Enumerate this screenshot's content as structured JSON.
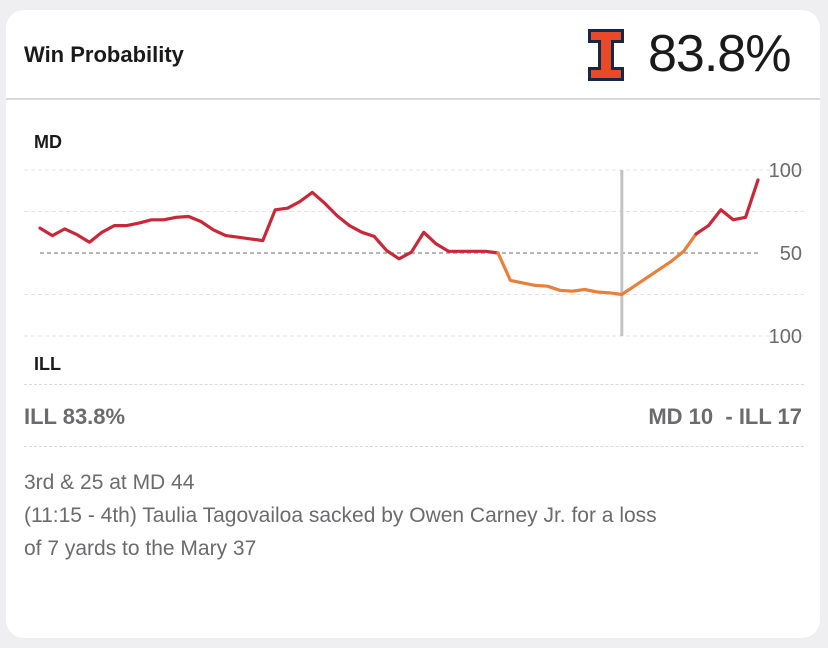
{
  "header": {
    "title": "Win Probability",
    "team_logo_icon": "illinois-block-i-logo",
    "probability": "83.8%"
  },
  "chart_data": {
    "type": "line",
    "title": "",
    "xlabel": "",
    "ylabel": "",
    "top_team_label": "MD",
    "bottom_team_label": "ILL",
    "y_tick_labels": [
      "100",
      "50",
      "100"
    ],
    "ylim": [
      -100,
      100
    ],
    "grid": "dashed horizontal",
    "colors": {
      "line_primary": "#c8283a",
      "line_recent": "#e8803a",
      "marker": "#c3c3c6",
      "midline": "#8a8a8d"
    },
    "current_play_index": 47,
    "series": [
      {
        "values": [
          30,
          21,
          29,
          22,
          13,
          25,
          33,
          33,
          36,
          40,
          40,
          43,
          44,
          38,
          28,
          21,
          19,
          17,
          15,
          52,
          54,
          62,
          73,
          60,
          45,
          33,
          25,
          20,
          3,
          -7,
          1,
          25,
          11,
          2,
          2,
          2,
          2,
          0,
          -33,
          -36,
          -39,
          -40,
          -45,
          -46,
          -44,
          -47,
          -48,
          -50,
          -40,
          -30,
          -20,
          -10,
          2,
          23,
          33,
          52,
          40,
          43,
          88
        ]
      }
    ],
    "recent_start_index": 37
  },
  "score": {
    "leader_text": "ILL 83.8%",
    "game_score": "MD 10  - ILL 17"
  },
  "play": {
    "situation": "3rd & 25 at MD 44",
    "line1": "(11:15 - 4th) Taulia Tagovailoa sacked by Owen Carney Jr. for a loss",
    "line2": "of 7 yards to the Mary 37"
  }
}
